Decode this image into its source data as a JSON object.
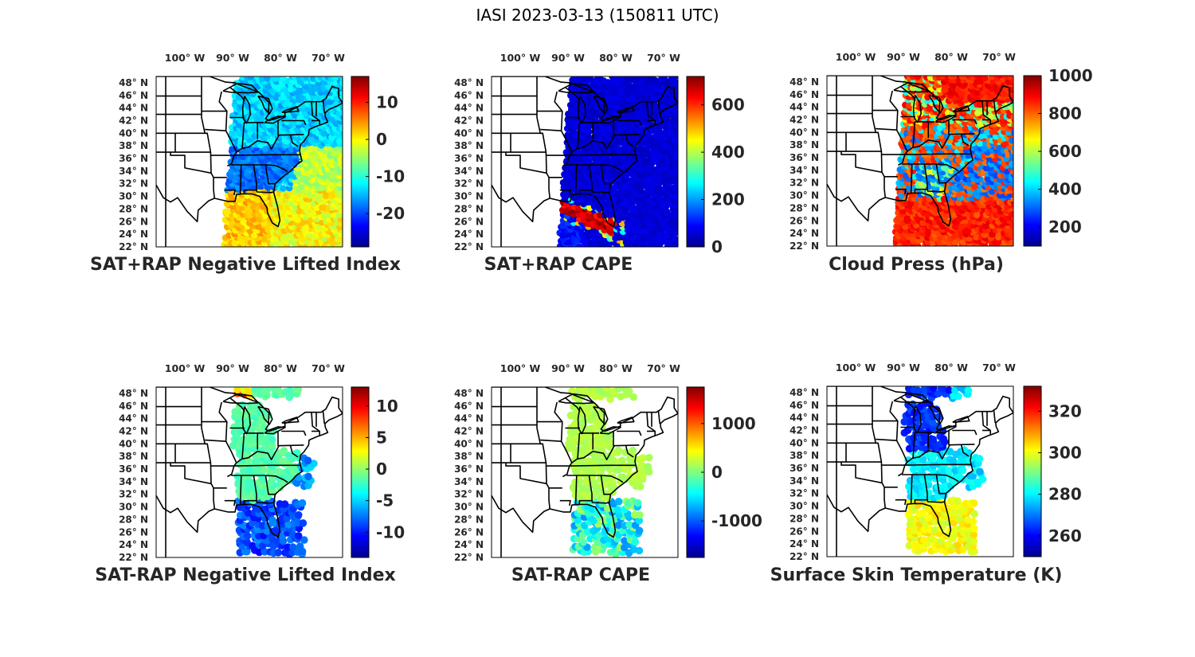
{
  "figure": {
    "title": "IASI 2023-03-13 (150811 UTC)",
    "lon_tick_labels": [
      "100° W",
      "90° W",
      "80° W",
      "70° W"
    ],
    "lat_tick_labels": [
      "48° N",
      "46° N",
      "44° N",
      "42° N",
      "40° N",
      "38° N",
      "36° N",
      "34° N",
      "32° N",
      "30° N",
      "28° N",
      "26° N",
      "24° N",
      "22° N"
    ],
    "lon_range": [
      -106,
      -67
    ],
    "lat_range": [
      22,
      49
    ],
    "colormap": "jet",
    "colormap_stops": [
      "#00008f",
      "#0000ff",
      "#00ffff",
      "#ffff00",
      "#ff0000",
      "#800000"
    ]
  },
  "chart_data": [
    {
      "type": "heatmap",
      "title": "SAT+RAP Negative Lifted Index",
      "colorbar_ticks": [
        10,
        0,
        -10,
        -20
      ],
      "clim": [
        -29,
        17
      ],
      "swath": "full",
      "field": "nli_plus"
    },
    {
      "type": "heatmap",
      "title": "SAT+RAP CAPE",
      "colorbar_ticks": [
        600,
        400,
        200,
        0
      ],
      "clim": [
        0,
        720
      ],
      "swath": "full",
      "field": "cape_plus"
    },
    {
      "type": "heatmap",
      "title": "Cloud Press (hPa)",
      "colorbar_ticks": [
        1000,
        800,
        600,
        400,
        200
      ],
      "clim": [
        100,
        1000
      ],
      "swath": "full",
      "field": "cloud_press"
    },
    {
      "type": "heatmap",
      "title": "SAT-RAP Negative Lifted Index",
      "colorbar_ticks": [
        10,
        5,
        0,
        -5,
        -10
      ],
      "clim": [
        -14,
        13
      ],
      "swath": "sparse",
      "field": "nli_minus"
    },
    {
      "type": "heatmap",
      "title": "SAT-RAP CAPE",
      "colorbar_ticks": [
        1000,
        0,
        -1000
      ],
      "clim": [
        -1750,
        1750
      ],
      "swath": "sparse",
      "field": "cape_minus"
    },
    {
      "type": "heatmap",
      "title": "Surface Skin Temperature (K)",
      "colorbar_ticks": [
        320,
        300,
        280,
        260
      ],
      "clim": [
        250,
        332
      ],
      "swath": "sparse",
      "field": "skin_temp"
    }
  ]
}
